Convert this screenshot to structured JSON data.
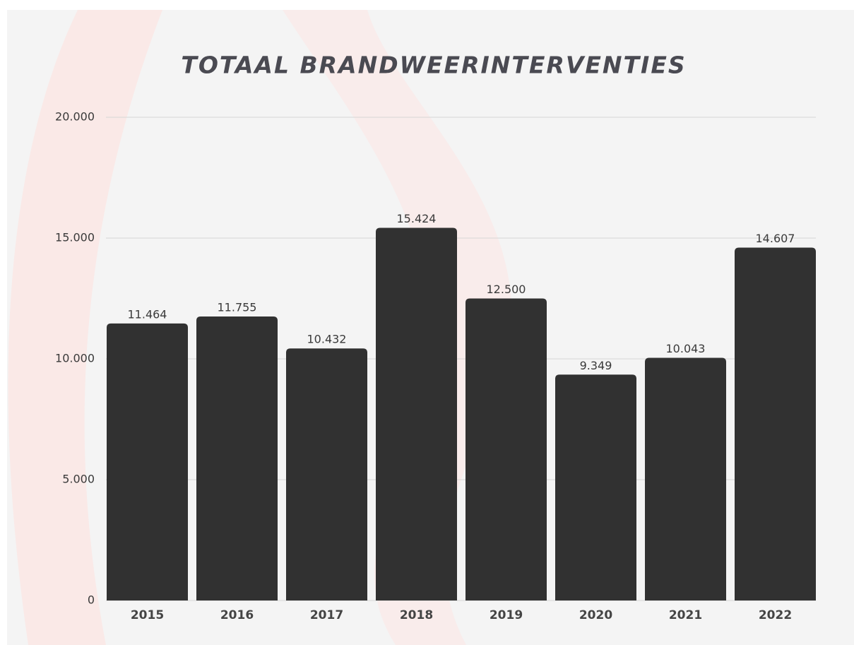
{
  "chart_data": {
    "type": "bar",
    "title": "TOTAAL BRANDWEERINTERVENTIES",
    "categories": [
      "2015",
      "2016",
      "2017",
      "2018",
      "2019",
      "2020",
      "2021",
      "2022"
    ],
    "values": [
      11464,
      11755,
      10432,
      15424,
      12500,
      9349,
      10043,
      14607
    ],
    "value_labels": [
      "11.464",
      "11.755",
      "10.432",
      "15.424",
      "12.500",
      "9.349",
      "10.043",
      "14.607"
    ],
    "color": "#313131",
    "ylim": [
      0,
      20000
    ],
    "yticks": [
      0,
      {
        "value": 5000,
        "label": "5.000"
      },
      {
        "value": 10000,
        "label": "10.000"
      },
      {
        "value": 15000,
        "label": "15.000"
      },
      {
        "value": 20000,
        "label": "20.000"
      }
    ],
    "grid": true
  }
}
